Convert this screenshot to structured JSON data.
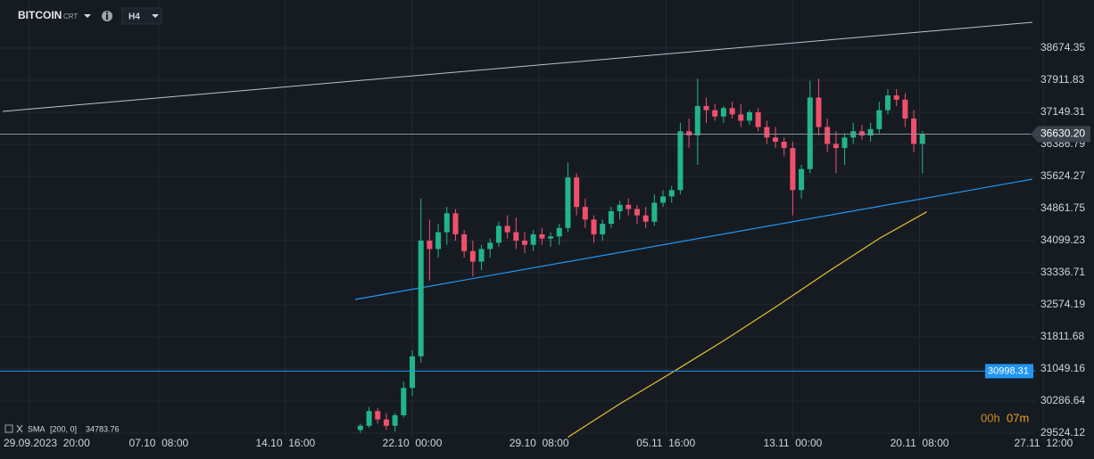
{
  "header": {
    "symbol": "BITCOIN",
    "symbol_tag": "CRT",
    "timeframe": "H4"
  },
  "chart_data": {
    "type": "candlestick",
    "x": [
      -6,
      -5,
      -4,
      -3,
      -2,
      -1,
      0,
      1,
      2,
      3,
      4,
      5,
      6,
      7,
      8,
      9,
      10,
      11,
      12,
      13,
      14,
      15,
      16,
      17,
      18,
      19,
      20,
      21,
      22,
      23,
      24,
      25,
      26,
      27,
      28,
      29,
      30,
      31,
      32,
      33,
      34,
      35,
      36,
      37,
      38,
      39,
      40,
      41,
      42,
      43,
      44,
      45,
      46,
      47,
      48,
      49,
      50,
      51,
      52,
      53,
      54,
      55,
      56,
      57,
      58,
      59
    ],
    "open": [
      29600,
      29700,
      30050,
      29850,
      29700,
      29950,
      30600,
      31350,
      34100,
      33900,
      34300,
      34750,
      34250,
      33850,
      33600,
      33900,
      34050,
      34450,
      34300,
      34100,
      34000,
      34250,
      34150,
      34200,
      34400,
      35600,
      34900,
      34600,
      34250,
      34500,
      34800,
      34950,
      34850,
      34700,
      34550,
      35000,
      35150,
      35300,
      36700,
      36600,
      37300,
      37200,
      37050,
      37250,
      37100,
      36950,
      37150,
      36800,
      36550,
      36450,
      36300,
      35300,
      35800,
      37500,
      36800,
      36400,
      36300,
      36550,
      36700,
      36600,
      36750,
      37200,
      37550,
      37450,
      37000,
      36400
    ],
    "high": [
      29750,
      30150,
      30120,
      30000,
      30000,
      30750,
      31500,
      35100,
      34600,
      34500,
      34900,
      34850,
      34350,
      34100,
      34000,
      34150,
      34550,
      34700,
      34650,
      34300,
      34350,
      34400,
      34300,
      34500,
      35950,
      35700,
      35100,
      34700,
      34600,
      34900,
      35050,
      35100,
      34950,
      34900,
      35200,
      35300,
      35400,
      36900,
      37000,
      37950,
      37500,
      37350,
      37300,
      37400,
      37350,
      37200,
      37250,
      36950,
      36800,
      36550,
      36450,
      35900,
      37900,
      37950,
      37000,
      36700,
      36650,
      36900,
      36850,
      36900,
      37400,
      37700,
      37700,
      37600,
      37200,
      36700
    ],
    "low": [
      29530,
      29650,
      29750,
      29600,
      29560,
      29900,
      30400,
      31200,
      33150,
      33700,
      34000,
      34100,
      33700,
      33250,
      33400,
      33700,
      33950,
      34150,
      33900,
      33800,
      33850,
      34000,
      33950,
      34000,
      34300,
      34700,
      34400,
      34050,
      34100,
      34400,
      34600,
      34700,
      34500,
      34400,
      34450,
      34900,
      35000,
      35200,
      36300,
      35900,
      36900,
      36950,
      36900,
      37000,
      36800,
      36850,
      36700,
      36400,
      36300,
      36100,
      34700,
      35100,
      35700,
      36600,
      36200,
      35700,
      35900,
      36400,
      36500,
      36450,
      36650,
      37100,
      37300,
      36800,
      36200,
      35700
    ],
    "close": [
      29700,
      30050,
      29850,
      29700,
      29950,
      30600,
      31350,
      34100,
      33900,
      34300,
      34750,
      34250,
      33850,
      33600,
      33900,
      34050,
      34450,
      34300,
      34100,
      34000,
      34250,
      34150,
      34200,
      34400,
      35600,
      34900,
      34600,
      34250,
      34500,
      34800,
      34950,
      34850,
      34700,
      34550,
      35000,
      35150,
      35300,
      36700,
      36600,
      37300,
      37200,
      37050,
      37250,
      37100,
      36950,
      37150,
      36800,
      36550,
      36450,
      36300,
      35300,
      35800,
      37500,
      36800,
      36400,
      36300,
      36550,
      36700,
      36600,
      36750,
      37200,
      37550,
      37450,
      37000,
      36400,
      36630
    ],
    "up_color": "#22b58a",
    "down_color": "#f0506e",
    "xlim": [
      -47.68,
      72.03
    ],
    "xticks": [
      {
        "value": -44.33,
        "label": "29.09.2023  20:00"
      },
      {
        "value": -29.33,
        "label": "07.10  08:00"
      },
      {
        "value": -14.67,
        "label": "14.10  16:00"
      },
      {
        "value": 0,
        "label": "22.10  00:00"
      },
      {
        "value": 14.67,
        "label": "29.10  08:00"
      },
      {
        "value": 29.33,
        "label": "05.11  16:00"
      },
      {
        "value": 44,
        "label": "13.11  00:00"
      },
      {
        "value": 58.67,
        "label": "20.11  08:00"
      },
      {
        "value": 73,
        "label": "27.11  12:00"
      }
    ],
    "ylim": [
      29440,
      39818
    ],
    "yticks": [
      29524.12,
      30286.64,
      31049.16,
      31811.68,
      32574.19,
      33336.71,
      34099.23,
      34861.75,
      35624.27,
      36386.79,
      37149.31,
      37911.83,
      38674.35
    ],
    "grid": true,
    "price_lines": [
      {
        "value": 36630.2,
        "label": "36630.20",
        "color": "#8a929c"
      },
      {
        "value": 30998.31,
        "label": "30998.31",
        "color": "#2196f3"
      }
    ],
    "indicator": {
      "name": "SMA",
      "params": "[200, 0]",
      "value": 34783.76,
      "color": "#e6c229",
      "x": [
        18,
        24,
        30,
        36,
        42,
        48,
        54,
        59.5
      ],
      "values": [
        29430,
        30220,
        30960,
        31720,
        32520,
        33350,
        34150,
        34783.76
      ]
    },
    "timer": {
      "hours": "00h",
      "minutes": "07m"
    }
  }
}
